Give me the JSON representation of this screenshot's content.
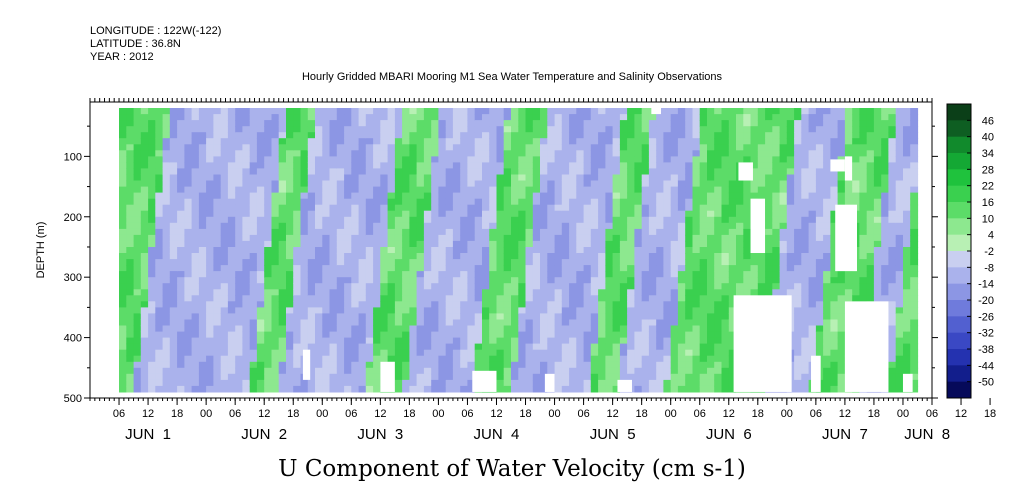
{
  "header": {
    "longitude": "LONGITUDE : 122W(-122)",
    "latitude": "LATITUDE : 36.8N",
    "year": "YEAR : 2012"
  },
  "chart_data": {
    "type": "heatmap",
    "title": "Hourly Gridded MBARI Mooring M1 Sea Water Temperature and Salinity Observations",
    "xlabel": "U Component of Water Velocity (cm s-1)",
    "ylabel": "DEPTH (m)",
    "ylim": [
      500,
      10
    ],
    "y_ticks": [
      100,
      200,
      300,
      400,
      500
    ],
    "x_range_hours": [
      -6,
      168
    ],
    "x_hour_labels": [
      "06",
      "12",
      "18",
      "00",
      "06",
      "12",
      "18",
      "00",
      "06",
      "12",
      "18",
      "00",
      "06",
      "12",
      "18",
      "00",
      "06",
      "12",
      "18",
      "00",
      "06",
      "12",
      "18",
      "00",
      "06",
      "12",
      "18",
      "00",
      "06",
      "12",
      "18",
      "00",
      "06",
      "12",
      "18",
      "00",
      "06",
      "12",
      "18",
      "00"
    ],
    "x_day_labels": [
      {
        "label": "JUN  1",
        "hour": 6
      },
      {
        "label": "JUN  2",
        "hour": 30
      },
      {
        "label": "JUN  3",
        "hour": 54
      },
      {
        "label": "JUN  4",
        "hour": 78
      },
      {
        "label": "JUN  5",
        "hour": 102
      },
      {
        "label": "JUN  6",
        "hour": 126
      },
      {
        "label": "JUN  7",
        "hour": 150
      },
      {
        "label": "JUN  8",
        "hour": 167
      }
    ],
    "data_hours": [
      0,
      165
    ],
    "data_depth": [
      20,
      490
    ],
    "colorbar": {
      "labels": [
        "46",
        "40",
        "34",
        "28",
        "22",
        "16",
        "10",
        "4",
        "-2",
        "-8",
        "-14",
        "-20",
        "-26",
        "-32",
        "-38",
        "-44",
        "-50"
      ],
      "colors": [
        "#0b3f18",
        "#0e5e22",
        "#118a2c",
        "#14a834",
        "#1fc23d",
        "#3ad04f",
        "#5cdc68",
        "#8de88f",
        "#b8f0b4",
        "#c9cff0",
        "#aab2ec",
        "#8c96e4",
        "#6f7bdc",
        "#5260d0",
        "#3a48c4",
        "#2432b0",
        "#121e8c",
        "#060a5a"
      ]
    },
    "u_velocity_pattern_cm_s": {
      "negative_periods_hours": [
        [
          6,
          30
        ],
        [
          36,
          54
        ],
        [
          62,
          76
        ],
        [
          84,
          100
        ],
        [
          106,
          116
        ],
        [
          136,
          146
        ],
        [
          156,
          162
        ]
      ],
      "positive_periods_hours": [
        [
          0,
          6
        ],
        [
          30,
          36
        ],
        [
          54,
          62
        ],
        [
          76,
          84
        ],
        [
          100,
          106
        ],
        [
          116,
          136
        ],
        [
          146,
          156
        ],
        [
          162,
          165
        ]
      ],
      "typical_min": -20,
      "typical_max": 28
    }
  }
}
